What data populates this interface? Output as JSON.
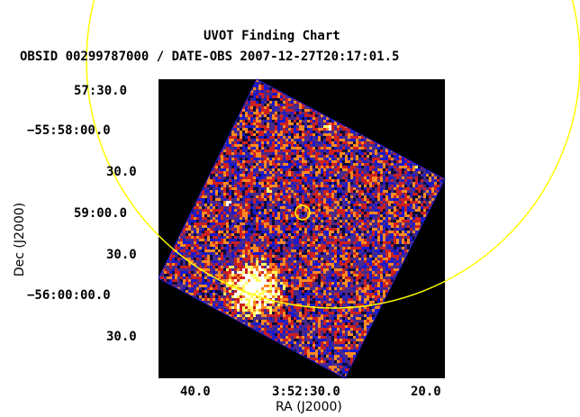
{
  "chart": {
    "title": "UVOT Finding Chart",
    "subtitle": "OBSID 00299787000 / DATE-OBS 2007-12-27T20:17:01.5",
    "xlabel": "RA (J2000)",
    "ylabel": "Dec (J2000)",
    "x_ticks": [
      "40.0",
      "3:52:30.0",
      "20.0"
    ],
    "y_ticks": [
      "57:30.0",
      "−55:58:00.0",
      "30.0",
      "59:00.0",
      "30.0",
      "−56:00:00.0",
      "30.0"
    ]
  },
  "colors": {
    "background": "#ffffff",
    "field": "#000000",
    "image_low": "#1a1acc",
    "image_mid": "#cc2020",
    "image_high": "#ffff66",
    "error_circle_large": "#ffff00",
    "target_circle": "#ffff00"
  },
  "chart_data": {
    "type": "other",
    "description_items": [
      "large error circle",
      "target marker circle"
    ],
    "title": "UVOT Finding Chart",
    "xlabel": "RA (J2000)",
    "ylabel": "Dec (J2000)"
  }
}
